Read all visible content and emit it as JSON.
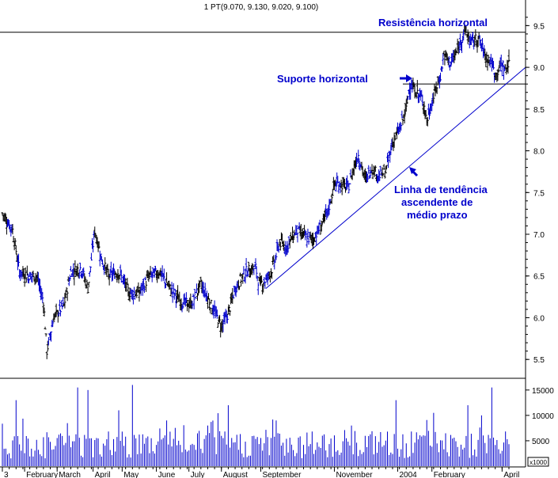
{
  "chart_data": {
    "type": "ohlc-bar-with-volume",
    "header": "1 PT(9.070, 9.130, 9.020, 9.100)",
    "price_axis": {
      "ylim": [
        5.35,
        9.75
      ],
      "ticks": [
        "5.5",
        "6.0",
        "6.5",
        "7.0",
        "7.5",
        "8.0",
        "8.5",
        "9.0",
        "9.5"
      ],
      "tick_values": [
        5.5,
        6.0,
        6.5,
        7.0,
        7.5,
        8.0,
        8.5,
        9.0,
        9.5
      ]
    },
    "volume_axis": {
      "ylim": [
        0,
        17000
      ],
      "ticks": [
        "5000",
        "10000",
        "15000"
      ],
      "tick_values": [
        5000,
        10000,
        15000
      ],
      "unit_label": "x1000"
    },
    "x_axis": {
      "labels": [
        "3",
        "February",
        "March",
        "April",
        "May",
        "June",
        "July",
        "August",
        "September",
        "November",
        "2004",
        "February",
        "April"
      ],
      "label_index": [
        0,
        6.5,
        16,
        26.5,
        35,
        45,
        54.5,
        64,
        75.5,
        97,
        115.5,
        125.5,
        146
      ]
    },
    "price_series": {
      "name": "PT",
      "color": "#0000cc",
      "anchors": [
        [
          0,
          7.25
        ],
        [
          3,
          7.05
        ],
        [
          5,
          6.55
        ],
        [
          8,
          6.5
        ],
        [
          10,
          6.5
        ],
        [
          12,
          6.2
        ],
        [
          13,
          5.6
        ],
        [
          15,
          6.0
        ],
        [
          18,
          6.15
        ],
        [
          20,
          6.55
        ],
        [
          23,
          6.6
        ],
        [
          25,
          6.35
        ],
        [
          27,
          7.05
        ],
        [
          29,
          6.7
        ],
        [
          31,
          6.5
        ],
        [
          34,
          6.55
        ],
        [
          37,
          6.3
        ],
        [
          40,
          6.3
        ],
        [
          43,
          6.5
        ],
        [
          46,
          6.55
        ],
        [
          49,
          6.35
        ],
        [
          52,
          6.2
        ],
        [
          55,
          6.15
        ],
        [
          58,
          6.4
        ],
        [
          61,
          6.15
        ],
        [
          64,
          5.9
        ],
        [
          66,
          6.05
        ],
        [
          68,
          6.35
        ],
        [
          71,
          6.55
        ],
        [
          74,
          6.6
        ],
        [
          75,
          6.4
        ],
        [
          77,
          6.45
        ],
        [
          79,
          6.6
        ],
        [
          81,
          6.9
        ],
        [
          83,
          6.85
        ],
        [
          86,
          7.05
        ],
        [
          89,
          6.95
        ],
        [
          91,
          6.95
        ],
        [
          93,
          7.1
        ],
        [
          95,
          7.25
        ],
        [
          97,
          7.6
        ],
        [
          99,
          7.6
        ],
        [
          101,
          7.55
        ],
        [
          103,
          7.85
        ],
        [
          104,
          7.95
        ],
        [
          106,
          7.65
        ],
        [
          108,
          7.8
        ],
        [
          110,
          7.7
        ],
        [
          112,
          7.75
        ],
        [
          114,
          8.1
        ],
        [
          116,
          8.25
        ],
        [
          118,
          8.5
        ],
        [
          119,
          8.8
        ],
        [
          121,
          8.7
        ],
        [
          123,
          8.6
        ],
        [
          124,
          8.35
        ],
        [
          126,
          8.65
        ],
        [
          128,
          8.9
        ],
        [
          129,
          9.15
        ],
        [
          131,
          9.05
        ],
        [
          133,
          9.2
        ],
        [
          135,
          9.45
        ],
        [
          137,
          9.3
        ],
        [
          139,
          9.35
        ],
        [
          141,
          9.15
        ],
        [
          143,
          9.05
        ],
        [
          144,
          8.9
        ],
        [
          146,
          9.05
        ],
        [
          147,
          8.95
        ],
        [
          148,
          9.1
        ]
      ]
    },
    "volume_series": {
      "name": "Volume",
      "color": "#0000cc",
      "spikes": [
        [
          4,
          13000
        ],
        [
          22,
          15500
        ],
        [
          25,
          15000
        ],
        [
          34,
          11000
        ],
        [
          38,
          16000
        ],
        [
          48,
          9000
        ],
        [
          60,
          8000
        ],
        [
          66,
          12000
        ],
        [
          80,
          9000
        ],
        [
          102,
          8000
        ],
        [
          115,
          13000
        ],
        [
          126,
          10500
        ],
        [
          136,
          12000
        ],
        [
          140,
          10000
        ],
        [
          143,
          15500
        ]
      ]
    },
    "lines": [
      {
        "kind": "horizontal",
        "y": 9.42,
        "color": "#000000"
      },
      {
        "kind": "horizontal",
        "y": 8.8,
        "color": "#000000",
        "from_index": 117
      },
      {
        "kind": "trend",
        "from": [
          77,
          6.35
        ],
        "to": [
          158,
          9.0
        ],
        "color": "#0000cc"
      }
    ],
    "annotations": [
      {
        "text": "Resistência horizontal"
      },
      {
        "text": "Suporte horizontal"
      },
      {
        "text": "Linha de tendência"
      },
      {
        "text": "ascendente de"
      },
      {
        "text": "médio prazo"
      }
    ]
  }
}
